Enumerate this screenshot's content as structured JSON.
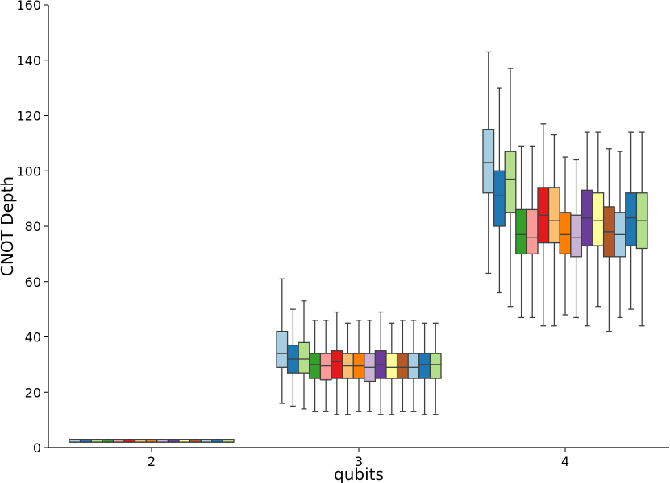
{
  "chart_data": {
    "type": "box",
    "xlabel": "qubits",
    "ylabel": "CNOT Depth",
    "ylim": [
      0,
      160
    ],
    "yticks": [
      0,
      20,
      40,
      60,
      80,
      100,
      120,
      140,
      160
    ],
    "categories": [
      "2",
      "3",
      "4"
    ],
    "grid": false,
    "legend": "none",
    "palette": [
      "#a6cee3",
      "#1f78b4",
      "#b2df8a",
      "#33a02c",
      "#fb9a99",
      "#e31a1c",
      "#fdbf6f",
      "#ff7f00",
      "#cab2d6",
      "#6a3d9a",
      "#ffff99",
      "#b15928",
      "#a6cee3",
      "#1f78b4",
      "#b2df8a"
    ],
    "groups": [
      {
        "category": "2",
        "boxes": [
          {
            "whislo": 2,
            "q1": 2,
            "med": 2,
            "q3": 3,
            "whishi": 3
          },
          {
            "whislo": 2,
            "q1": 2,
            "med": 2,
            "q3": 3,
            "whishi": 3
          },
          {
            "whislo": 2,
            "q1": 2,
            "med": 2,
            "q3": 3,
            "whishi": 3
          },
          {
            "whislo": 2,
            "q1": 2,
            "med": 2,
            "q3": 3,
            "whishi": 3
          },
          {
            "whislo": 2,
            "q1": 2,
            "med": 2,
            "q3": 3,
            "whishi": 3
          },
          {
            "whislo": 2,
            "q1": 2,
            "med": 2,
            "q3": 3,
            "whishi": 3
          },
          {
            "whislo": 2,
            "q1": 2,
            "med": 2,
            "q3": 3,
            "whishi": 3
          },
          {
            "whislo": 2,
            "q1": 2,
            "med": 2,
            "q3": 3,
            "whishi": 3
          },
          {
            "whislo": 2,
            "q1": 2,
            "med": 2,
            "q3": 3,
            "whishi": 3
          },
          {
            "whislo": 2,
            "q1": 2,
            "med": 2,
            "q3": 3,
            "whishi": 3
          },
          {
            "whislo": 2,
            "q1": 2,
            "med": 2,
            "q3": 3,
            "whishi": 3
          },
          {
            "whislo": 2,
            "q1": 2,
            "med": 2,
            "q3": 3,
            "whishi": 3
          },
          {
            "whislo": 2,
            "q1": 2,
            "med": 2,
            "q3": 3,
            "whishi": 3
          },
          {
            "whislo": 2,
            "q1": 2,
            "med": 2,
            "q3": 3,
            "whishi": 3
          },
          {
            "whislo": 2,
            "q1": 2,
            "med": 2,
            "q3": 3,
            "whishi": 3
          }
        ]
      },
      {
        "category": "3",
        "boxes": [
          {
            "whislo": 16,
            "q1": 29,
            "med": 34,
            "q3": 42,
            "whishi": 61
          },
          {
            "whislo": 15,
            "q1": 27,
            "med": 32,
            "q3": 37,
            "whishi": 50
          },
          {
            "whislo": 14,
            "q1": 27,
            "med": 32,
            "q3": 38,
            "whishi": 53
          },
          {
            "whislo": 13,
            "q1": 25,
            "med": 30,
            "q3": 34,
            "whishi": 46
          },
          {
            "whislo": 13,
            "q1": 24.5,
            "med": 29.5,
            "q3": 34,
            "whishi": 46
          },
          {
            "whislo": 12,
            "q1": 25,
            "med": 31,
            "q3": 35,
            "whishi": 49
          },
          {
            "whislo": 12,
            "q1": 25,
            "med": 29.5,
            "q3": 34,
            "whishi": 45
          },
          {
            "whislo": 13,
            "q1": 25,
            "med": 29.5,
            "q3": 34,
            "whishi": 46
          },
          {
            "whislo": 13,
            "q1": 24,
            "med": 29,
            "q3": 34,
            "whishi": 46
          },
          {
            "whislo": 12,
            "q1": 25,
            "med": 30,
            "q3": 35,
            "whishi": 49
          },
          {
            "whislo": 12,
            "q1": 25,
            "med": 29,
            "q3": 34,
            "whishi": 45
          },
          {
            "whislo": 13,
            "q1": 25,
            "med": 29,
            "q3": 34,
            "whishi": 46
          },
          {
            "whislo": 13,
            "q1": 25,
            "med": 29,
            "q3": 34,
            "whishi": 46
          },
          {
            "whislo": 12,
            "q1": 25,
            "med": 30,
            "q3": 34,
            "whishi": 45
          },
          {
            "whislo": 12,
            "q1": 25,
            "med": 30,
            "q3": 34,
            "whishi": 45
          }
        ]
      },
      {
        "category": "4",
        "boxes": [
          {
            "whislo": 63,
            "q1": 92,
            "med": 103,
            "q3": 115,
            "whishi": 143
          },
          {
            "whislo": 56,
            "q1": 80,
            "med": 91,
            "q3": 100,
            "whishi": 130
          },
          {
            "whislo": 51,
            "q1": 85,
            "med": 97,
            "q3": 107,
            "whishi": 137
          },
          {
            "whislo": 47,
            "q1": 70,
            "med": 77,
            "q3": 86,
            "whishi": 109
          },
          {
            "whislo": 47,
            "q1": 70,
            "med": 76,
            "q3": 86,
            "whishi": 109
          },
          {
            "whislo": 44,
            "q1": 74,
            "med": 84,
            "q3": 94,
            "whishi": 117
          },
          {
            "whislo": 44,
            "q1": 74,
            "med": 82,
            "q3": 94,
            "whishi": 113
          },
          {
            "whislo": 48,
            "q1": 70,
            "med": 77,
            "q3": 85,
            "whishi": 105
          },
          {
            "whislo": 47,
            "q1": 69,
            "med": 76,
            "q3": 84,
            "whishi": 104
          },
          {
            "whislo": 44,
            "q1": 73,
            "med": 83,
            "q3": 93,
            "whishi": 114
          },
          {
            "whislo": 51,
            "q1": 73,
            "med": 82,
            "q3": 92,
            "whishi": 114
          },
          {
            "whislo": 42,
            "q1": 69,
            "med": 78,
            "q3": 87,
            "whishi": 108
          },
          {
            "whislo": 47,
            "q1": 69,
            "med": 77,
            "q3": 85,
            "whishi": 107
          },
          {
            "whislo": 50,
            "q1": 73,
            "med": 83,
            "q3": 92,
            "whishi": 114
          },
          {
            "whislo": 44,
            "q1": 72,
            "med": 82,
            "q3": 92,
            "whishi": 114
          }
        ]
      }
    ]
  }
}
